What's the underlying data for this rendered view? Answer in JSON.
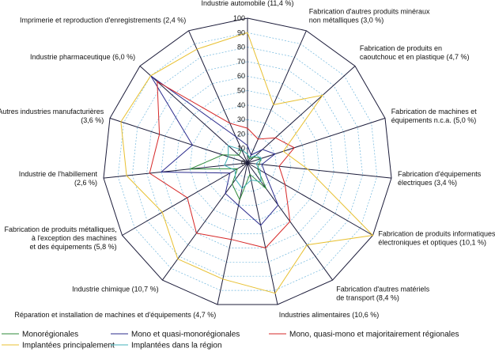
{
  "chart_data": {
    "type": "radar",
    "rmax": 100,
    "ticks": [
      0,
      10,
      20,
      30,
      40,
      50,
      60,
      70,
      80,
      90,
      100
    ],
    "categories": [
      [
        "Industrie automobile (11,4 %)"
      ],
      [
        "Fabrication d'autres produits minéraux",
        "non métalliques (3,0 %)"
      ],
      [
        "Fabrication de produits en",
        "caoutchouc et en plastique (4,7 %)"
      ],
      [
        "Fabrication de machines et",
        "équipements n.c.a. (5,0 %)"
      ],
      [
        "Fabrication d'équipements",
        "électriques (3,4 %)"
      ],
      [
        "Fabrication de produits informatiques,",
        "électroniques et optiques (10,1 %)"
      ],
      [
        "Fabrication d'autres matériels",
        "de transport (8,4 %)"
      ],
      [
        "Industries alimentaires (10,6 %)"
      ],
      [
        "Réparation et installation de machines et d'équipements (4,7 %)"
      ],
      [
        "Industrie chimique (10,7 %)"
      ],
      [
        "Fabrication de produits métalliques,",
        "à l'exception des machines",
        "et des équipements (5,8 %)"
      ],
      [
        "Industrie de l'habillement",
        "(2,6 %)"
      ],
      [
        "Autres industries manufacturières",
        "(3,6 %)"
      ],
      [
        "Industrie pharmaceutique (6,0 %)"
      ],
      [
        "Imprimerie et reproduction d'enregistrements (2,4 %)"
      ]
    ],
    "series": [
      {
        "name": "Monorégionales",
        "color": "#2e8b3a",
        "values": [
          6,
          3,
          6,
          10,
          8,
          8,
          22,
          8,
          26,
          18,
          8,
          40,
          18,
          8,
          10
        ]
      },
      {
        "name": "Mono et quasi-monorégionales",
        "color": "#2b2b8c",
        "values": [
          12,
          6,
          14,
          20,
          10,
          14,
          36,
          44,
          30,
          26,
          14,
          60,
          40,
          90,
          20
        ]
      },
      {
        "name": "Mono, quasi-mono et majoritairement régionales",
        "color": "#d62828",
        "values": [
          24,
          18,
          26,
          34,
          22,
          30,
          50,
          60,
          54,
          60,
          48,
          68,
          64,
          84,
          30
        ]
      },
      {
        "name": "Implantées principalement",
        "color": "#e8c030",
        "values": [
          90,
          44,
          70,
          26,
          42,
          100,
          70,
          92,
          82,
          82,
          68,
          84,
          92,
          90,
          86
        ]
      },
      {
        "name": "Implantées dans la région",
        "color": "#40b0b8",
        "values": [
          6,
          4,
          8,
          10,
          6,
          10,
          16,
          12,
          18,
          14,
          10,
          16,
          14,
          18,
          10
        ]
      }
    ],
    "legend": "bottom"
  }
}
